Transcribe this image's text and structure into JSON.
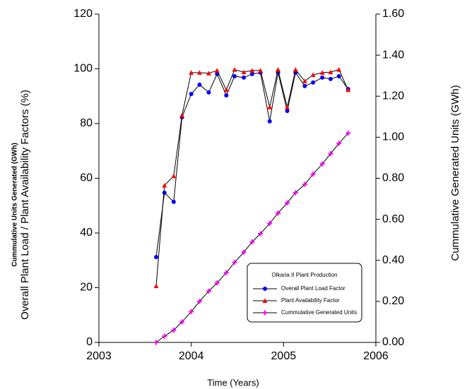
{
  "chart_data": {
    "type": "line",
    "x_label": "Time (Years)",
    "y_label_top": "Cummulative Units Generated (GWh)",
    "y_label": "Overall Plant Load / Plant Availability Factors (%)",
    "y2_label": "Cummulative Generated Units (GWh)",
    "legend_title": "Olkaria II Plant Production",
    "legend_position": "lower right",
    "x": [
      2003.62,
      2003.71,
      2003.81,
      2003.9,
      2004.0,
      2004.09,
      2004.19,
      2004.28,
      2004.38,
      2004.47,
      2004.57,
      2004.66,
      2004.75,
      2004.85,
      2004.94,
      2005.04,
      2005.13,
      2005.23,
      2005.32,
      2005.42,
      2005.51,
      2005.6,
      2005.7
    ],
    "series": [
      {
        "name": "Overall Plant Load Factor",
        "color": "#0000ff",
        "marker": "circle",
        "values": [
          31.2,
          54.7,
          51.4,
          82.3,
          90.8,
          94.2,
          91.4,
          98.1,
          90.3,
          97.3,
          96.8,
          98.1,
          98.6,
          80.8,
          98.6,
          84.6,
          98.6,
          93.7,
          95.0,
          96.8,
          96.3,
          97.3,
          92.6
        ]
      },
      {
        "name": "Plant Availability Factor",
        "color": "#ff0000",
        "marker": "triangle",
        "values": [
          20.6,
          57.4,
          60.8,
          83.0,
          98.6,
          98.6,
          98.4,
          99.4,
          92.3,
          99.7,
          98.8,
          99.4,
          99.4,
          86.0,
          99.7,
          86.0,
          99.7,
          95.5,
          97.8,
          98.6,
          98.8,
          99.7,
          92.3
        ]
      },
      {
        "name": "Cummulative Generated Units",
        "color": "#ff00ff",
        "marker": "plus",
        "axis": "y2",
        "values": [
          0,
          0.03,
          0.06,
          0.1,
          0.15,
          0.2,
          0.25,
          0.29,
          0.34,
          0.39,
          0.44,
          0.49,
          0.53,
          0.58,
          0.63,
          0.68,
          0.73,
          0.77,
          0.82,
          0.87,
          0.92,
          0.97,
          1.02
        ]
      }
    ],
    "xlim": [
      2003,
      2006
    ],
    "xticks": [
      2003,
      2004,
      2005,
      2006
    ],
    "ylim": [
      0,
      120
    ],
    "yticks": [
      0,
      20,
      40,
      60,
      80,
      100,
      120
    ],
    "y2lim": [
      0,
      1.6
    ],
    "y2ticks": [
      {
        "value": 0,
        "label": "0.00"
      },
      {
        "value": 0.2,
        "label": "0.20"
      },
      {
        "value": 0.4,
        "label": "0.40"
      },
      {
        "value": 0.6,
        "label": "0.60"
      },
      {
        "value": 0.8,
        "label": "0.80"
      },
      {
        "value": 1.0,
        "label": "1.00"
      },
      {
        "value": 1.2,
        "label": "1.20"
      },
      {
        "value": 1.4,
        "label": "1.40"
      },
      {
        "value": 1.6,
        "label": "1.60"
      }
    ],
    "line_color": "#000000"
  }
}
